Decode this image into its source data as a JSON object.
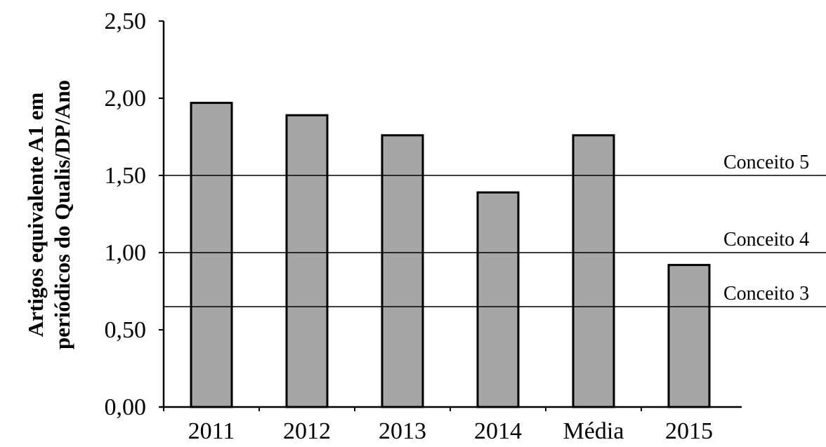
{
  "chart_data": {
    "type": "bar",
    "title": "",
    "xlabel": "",
    "ylabel_lines": [
      "Artigos equivalente A1 em",
      "periódicos do Qualis/DP/Ano"
    ],
    "categories": [
      "2011",
      "2012",
      "2013",
      "2014",
      "Média",
      "2015"
    ],
    "values": [
      1.97,
      1.89,
      1.76,
      1.39,
      1.76,
      0.92
    ],
    "ylim": [
      0,
      2.5
    ],
    "yticks": [
      0,
      0.5,
      1.0,
      1.5,
      2.0,
      2.5
    ],
    "ytick_labels": [
      "0,00",
      "0,50",
      "1,00",
      "1,50",
      "2,00",
      "2,50"
    ],
    "reference_lines": [
      {
        "label": "Conceito 5",
        "value": 1.5
      },
      {
        "label": "Conceito 4",
        "value": 1.0
      },
      {
        "label": "Conceito 3",
        "value": 0.65
      }
    ],
    "grid": false,
    "legend": "none",
    "colors": {
      "bar_fill": "#a6a6a6",
      "bar_stroke": "#000000",
      "axis": "#000000",
      "reference_line": "#000000"
    }
  }
}
